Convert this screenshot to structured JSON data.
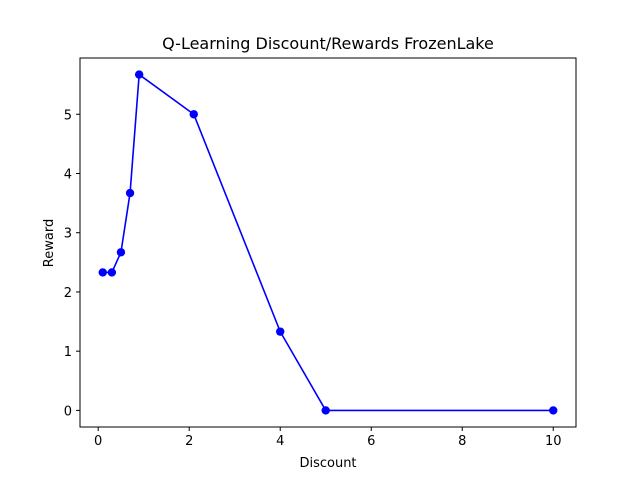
{
  "chart_data": {
    "type": "line",
    "title": "Q-Learning Discount/Rewards FrozenLake",
    "xlabel": "Discount",
    "ylabel": "Reward",
    "xlim": [
      -0.4,
      10.5
    ],
    "ylim": [
      -0.28,
      5.95
    ],
    "xticks": [
      0,
      2,
      4,
      6,
      8,
      10
    ],
    "yticks": [
      0,
      1,
      2,
      3,
      4,
      5
    ],
    "grid": false,
    "series": [
      {
        "color": "#0000ff",
        "marker": "circle",
        "points": [
          {
            "x": 0.1,
            "y": 2.33
          },
          {
            "x": 0.3,
            "y": 2.33
          },
          {
            "x": 0.5,
            "y": 2.67
          },
          {
            "x": 0.7,
            "y": 3.67
          },
          {
            "x": 0.9,
            "y": 5.67
          },
          {
            "x": 2.1,
            "y": 5.0
          },
          {
            "x": 4.0,
            "y": 1.33
          },
          {
            "x": 5.0,
            "y": 0.0
          },
          {
            "x": 10.0,
            "y": 0.0
          }
        ]
      }
    ]
  }
}
